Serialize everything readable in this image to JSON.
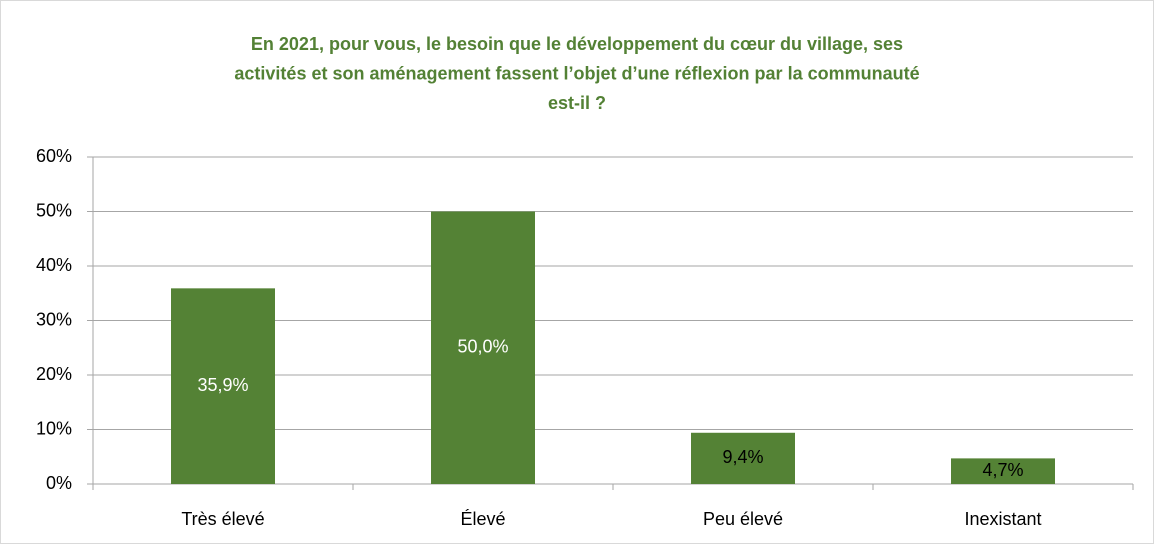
{
  "chart_data": {
    "type": "bar",
    "title": [
      "En 2021, pour vous, le besoin que le développement du cœur du village, ses",
      "activités et son aménagement fassent l’objet d’une réflexion par la communauté",
      "est-il ?"
    ],
    "categories": [
      "Très élevé",
      "Élevé",
      "Peu élevé",
      "Inexistant"
    ],
    "values": [
      35.9,
      50.0,
      9.4,
      4.7
    ],
    "value_labels": [
      "35,9%",
      "50,0%",
      "9,4%",
      "4,7%"
    ],
    "value_label_colors": [
      "#ffffff",
      "#ffffff",
      "#000000",
      "#000000"
    ],
    "color": "#548235",
    "title_color": "#538135",
    "ylim": [
      0,
      60
    ],
    "yticks": [
      {
        "value": 0,
        "label": "0%"
      },
      {
        "value": 10,
        "label": "10%"
      },
      {
        "value": 20,
        "label": "20%"
      },
      {
        "value": 30,
        "label": "30%"
      },
      {
        "value": 40,
        "label": "40%"
      },
      {
        "value": 50,
        "label": "50%"
      },
      {
        "value": 60,
        "label": "60%"
      }
    ],
    "grid": true
  }
}
